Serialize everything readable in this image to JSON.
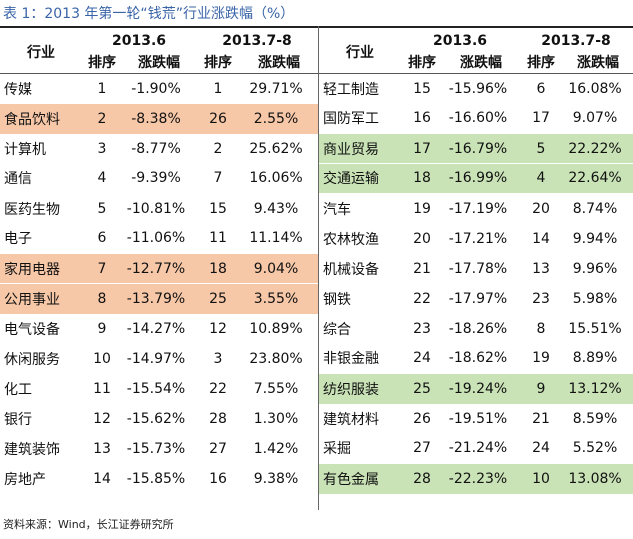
{
  "caption": "表 1：2013 年第一轮“钱荒”行业涨跌幅（%）",
  "header": {
    "industry": "行业",
    "period1": "2013.6",
    "period2": "2013.7-8",
    "rank": "排序",
    "change": "涨跌幅"
  },
  "left_rows": [
    {
      "industry": "传媒",
      "r1": "1",
      "c1": "-1.90%",
      "r2": "1",
      "c2": "29.71%",
      "hl": ""
    },
    {
      "industry": "食品饮料",
      "r1": "2",
      "c1": "-8.38%",
      "r2": "26",
      "c2": "2.55%",
      "hl": "orange"
    },
    {
      "industry": "计算机",
      "r1": "3",
      "c1": "-8.77%",
      "r2": "2",
      "c2": "25.62%",
      "hl": ""
    },
    {
      "industry": "通信",
      "r1": "4",
      "c1": "-9.39%",
      "r2": "7",
      "c2": "16.06%",
      "hl": ""
    },
    {
      "industry": "医药生物",
      "r1": "5",
      "c1": "-10.81%",
      "r2": "15",
      "c2": "9.43%",
      "hl": ""
    },
    {
      "industry": "电子",
      "r1": "6",
      "c1": "-11.06%",
      "r2": "11",
      "c2": "11.14%",
      "hl": ""
    },
    {
      "industry": "家用电器",
      "r1": "7",
      "c1": "-12.77%",
      "r2": "18",
      "c2": "9.04%",
      "hl": "orange"
    },
    {
      "industry": "公用事业",
      "r1": "8",
      "c1": "-13.79%",
      "r2": "25",
      "c2": "3.55%",
      "hl": "orange"
    },
    {
      "industry": "电气设备",
      "r1": "9",
      "c1": "-14.27%",
      "r2": "12",
      "c2": "10.89%",
      "hl": ""
    },
    {
      "industry": "休闲服务",
      "r1": "10",
      "c1": "-14.97%",
      "r2": "3",
      "c2": "23.80%",
      "hl": ""
    },
    {
      "industry": "化工",
      "r1": "11",
      "c1": "-15.54%",
      "r2": "22",
      "c2": "7.55%",
      "hl": ""
    },
    {
      "industry": "银行",
      "r1": "12",
      "c1": "-15.62%",
      "r2": "28",
      "c2": "1.30%",
      "hl": ""
    },
    {
      "industry": "建筑装饰",
      "r1": "13",
      "c1": "-15.73%",
      "r2": "27",
      "c2": "1.42%",
      "hl": ""
    },
    {
      "industry": "房地产",
      "r1": "14",
      "c1": "-15.85%",
      "r2": "16",
      "c2": "9.38%",
      "hl": ""
    }
  ],
  "right_rows": [
    {
      "industry": "轻工制造",
      "r1": "15",
      "c1": "-15.96%",
      "r2": "6",
      "c2": "16.08%",
      "hl": ""
    },
    {
      "industry": "国防军工",
      "r1": "16",
      "c1": "-16.60%",
      "r2": "17",
      "c2": "9.07%",
      "hl": ""
    },
    {
      "industry": "商业贸易",
      "r1": "17",
      "c1": "-16.79%",
      "r2": "5",
      "c2": "22.22%",
      "hl": "green"
    },
    {
      "industry": "交通运输",
      "r1": "18",
      "c1": "-16.99%",
      "r2": "4",
      "c2": "22.64%",
      "hl": "green"
    },
    {
      "industry": "汽车",
      "r1": "19",
      "c1": "-17.19%",
      "r2": "20",
      "c2": "8.74%",
      "hl": ""
    },
    {
      "industry": "农林牧渔",
      "r1": "20",
      "c1": "-17.21%",
      "r2": "14",
      "c2": "9.94%",
      "hl": ""
    },
    {
      "industry": "机械设备",
      "r1": "21",
      "c1": "-17.78%",
      "r2": "13",
      "c2": "9.96%",
      "hl": ""
    },
    {
      "industry": "钢铁",
      "r1": "22",
      "c1": "-17.97%",
      "r2": "23",
      "c2": "5.98%",
      "hl": ""
    },
    {
      "industry": "综合",
      "r1": "23",
      "c1": "-18.26%",
      "r2": "8",
      "c2": "15.51%",
      "hl": ""
    },
    {
      "industry": "非银金融",
      "r1": "24",
      "c1": "-18.62%",
      "r2": "19",
      "c2": "8.89%",
      "hl": ""
    },
    {
      "industry": "纺织服装",
      "r1": "25",
      "c1": "-19.24%",
      "r2": "9",
      "c2": "13.12%",
      "hl": "green"
    },
    {
      "industry": "建筑材料",
      "r1": "26",
      "c1": "-19.51%",
      "r2": "21",
      "c2": "8.59%",
      "hl": ""
    },
    {
      "industry": "采掘",
      "r1": "27",
      "c1": "-21.24%",
      "r2": "24",
      "c2": "5.52%",
      "hl": ""
    },
    {
      "industry": "有色金属",
      "r1": "28",
      "c1": "-22.23%",
      "r2": "10",
      "c2": "13.08%",
      "hl": "green"
    }
  ],
  "source": "资料来源：Wind，长江证券研究所",
  "colors": {
    "caption": "#3a64a8",
    "highlight_orange": "#f7c8a8",
    "highlight_green": "#c9e3b6"
  }
}
